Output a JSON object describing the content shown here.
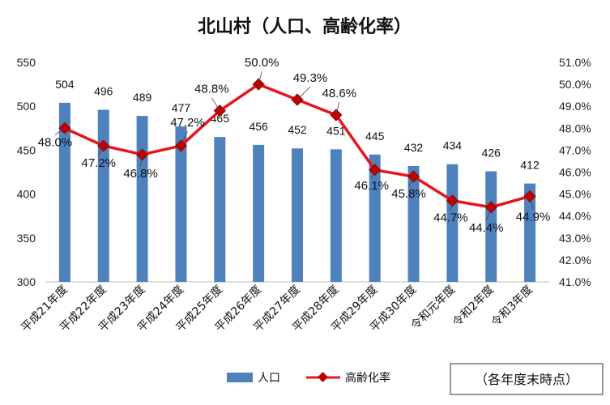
{
  "chart_data": {
    "type": "bar+line",
    "title": "北山村（人口、高齢化率）",
    "categories": [
      "平成21年度",
      "平成22年度",
      "平成23年度",
      "平成24年度",
      "平成25年度",
      "平成26年度",
      "平成27年度",
      "平成28年度",
      "平成29年度",
      "平成30年度",
      "令和元年度",
      "令和2年度",
      "令和3年度"
    ],
    "series": [
      {
        "name": "人口",
        "type": "bar",
        "axis": "left",
        "color": "#4f81bd",
        "values": [
          504,
          496,
          489,
          477,
          465,
          456,
          452,
          451,
          445,
          432,
          434,
          426,
          412
        ],
        "labels": [
          "504",
          "496",
          "489",
          "477",
          "465",
          "456",
          "452",
          "451",
          "445",
          "432",
          "434",
          "426",
          "412"
        ]
      },
      {
        "name": "高齢化率",
        "type": "line",
        "axis": "right",
        "color": "#e8141b",
        "marker_color": "#c00000",
        "values": [
          48.0,
          47.2,
          46.8,
          47.2,
          48.8,
          50.0,
          49.3,
          48.6,
          46.1,
          45.8,
          44.7,
          44.4,
          44.9
        ],
        "labels": [
          "48.0%",
          "47.2%",
          "46.8%",
          "47.2%",
          "48.8%",
          "50.0%",
          "49.3%",
          "48.6%",
          "46.1%",
          "45.8%",
          "44.7%",
          "44.4%",
          "44.9%"
        ]
      }
    ],
    "left_axis": {
      "min": 300,
      "max": 550,
      "ticks": [
        300,
        350,
        400,
        450,
        500,
        550
      ],
      "tick_labels": [
        "300",
        "350",
        "400",
        "450",
        "500",
        "550"
      ]
    },
    "right_axis": {
      "min": 41.0,
      "max": 51.0,
      "ticks": [
        41,
        42,
        43,
        44,
        45,
        46,
        47,
        48,
        49,
        50,
        51
      ],
      "tick_labels": [
        "41.0%",
        "42.0%",
        "43.0%",
        "44.0%",
        "45.0%",
        "46.0%",
        "47.0%",
        "48.0%",
        "49.0%",
        "50.0%",
        "51.0%"
      ]
    },
    "grid": false,
    "legend_position": "bottom-center",
    "note": "（各年度末時点）"
  }
}
